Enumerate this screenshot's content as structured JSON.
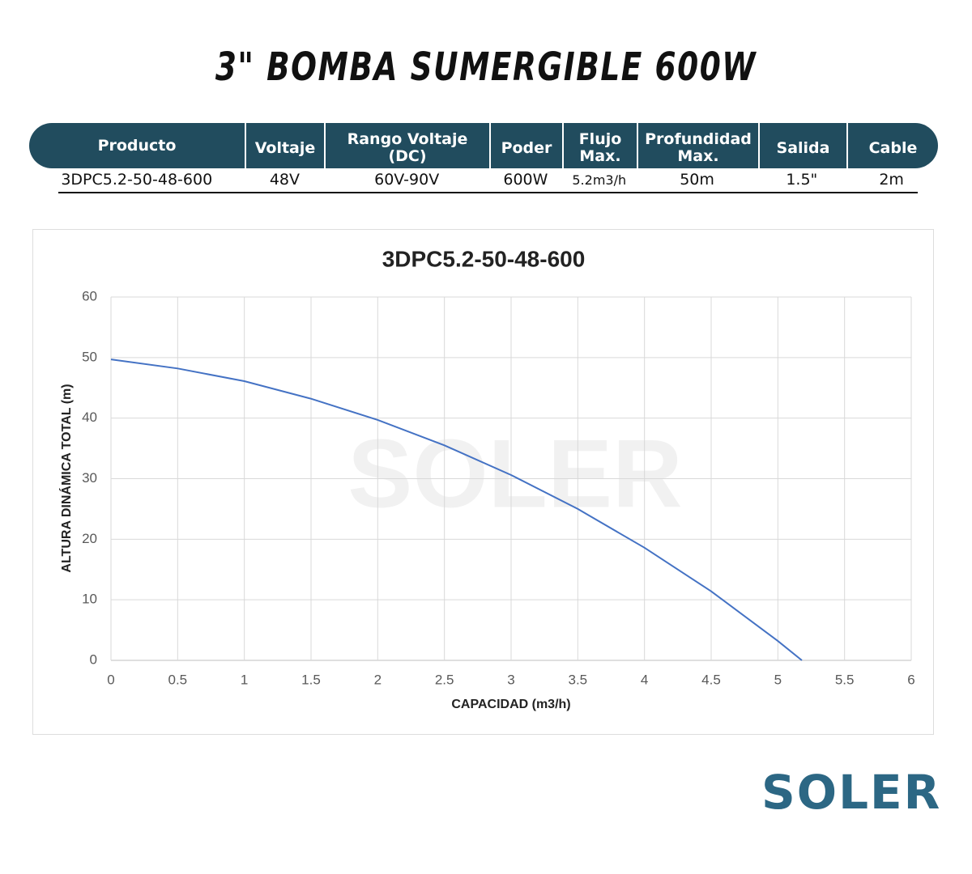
{
  "header": {
    "title": "3\" BOMBA SUMERGIBLE 600W"
  },
  "table": {
    "columns": [
      "Producto",
      "Voltaje",
      "Rango Voltaje (DC)",
      "Poder",
      "Flujo Max.",
      "Profundidad Max.",
      "Salida",
      "Cable"
    ],
    "rows": [
      [
        "3DPC5.2-50-48-600",
        "48V",
        "60V-90V",
        "600W",
        "5.2m3/h",
        "50m",
        "1.5\"",
        "2m"
      ]
    ]
  },
  "chart_data": {
    "type": "line",
    "title": "3DPC5.2-50-48-600",
    "x_label": "CAPACIDAD (m3/h)",
    "y_label": "ALTURA DINÁMICA TOTAL (m)",
    "x": [
      0,
      0.5,
      1,
      1.5,
      2,
      2.5,
      3,
      3.5,
      4,
      4.5,
      5,
      5.18
    ],
    "series": [
      {
        "name": "3DPC5.2-50-48-600",
        "color": "#4472c4",
        "values": [
          49.7,
          48.2,
          46.1,
          43.2,
          39.7,
          35.5,
          30.6,
          25,
          18.6,
          11.4,
          3.2,
          0
        ]
      }
    ],
    "xlim": [
      0,
      6
    ],
    "xticks": [
      0,
      0.5,
      1,
      1.5,
      2,
      2.5,
      3,
      3.5,
      4,
      4.5,
      5,
      5.5,
      6
    ],
    "ylim": [
      0,
      60
    ],
    "yticks": [
      0,
      10,
      20,
      30,
      40,
      50,
      60
    ],
    "grid": true
  },
  "brand": "SOLER"
}
